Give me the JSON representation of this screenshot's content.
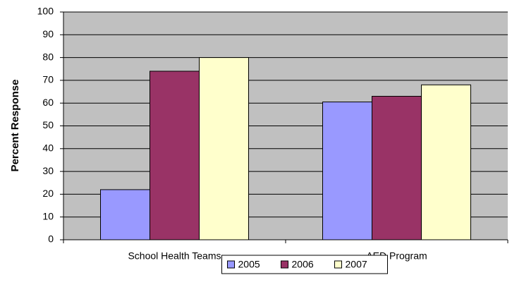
{
  "chart_data": {
    "type": "bar",
    "y_label": "Percent Response",
    "categories": [
      "School Health Teams",
      "AED Program"
    ],
    "series": [
      {
        "name": "2005",
        "color": "#9999ff",
        "values": [
          22,
          60.5
        ]
      },
      {
        "name": "2006",
        "color": "#993366",
        "values": [
          74,
          63
        ]
      },
      {
        "name": "2007",
        "color": "#ffffcc",
        "values": [
          80,
          68
        ]
      }
    ],
    "ylim": [
      0,
      100
    ],
    "yticks": [
      0,
      10,
      20,
      30,
      40,
      50,
      60,
      70,
      80,
      90,
      100
    ],
    "grid": true,
    "legend": "bottom"
  }
}
